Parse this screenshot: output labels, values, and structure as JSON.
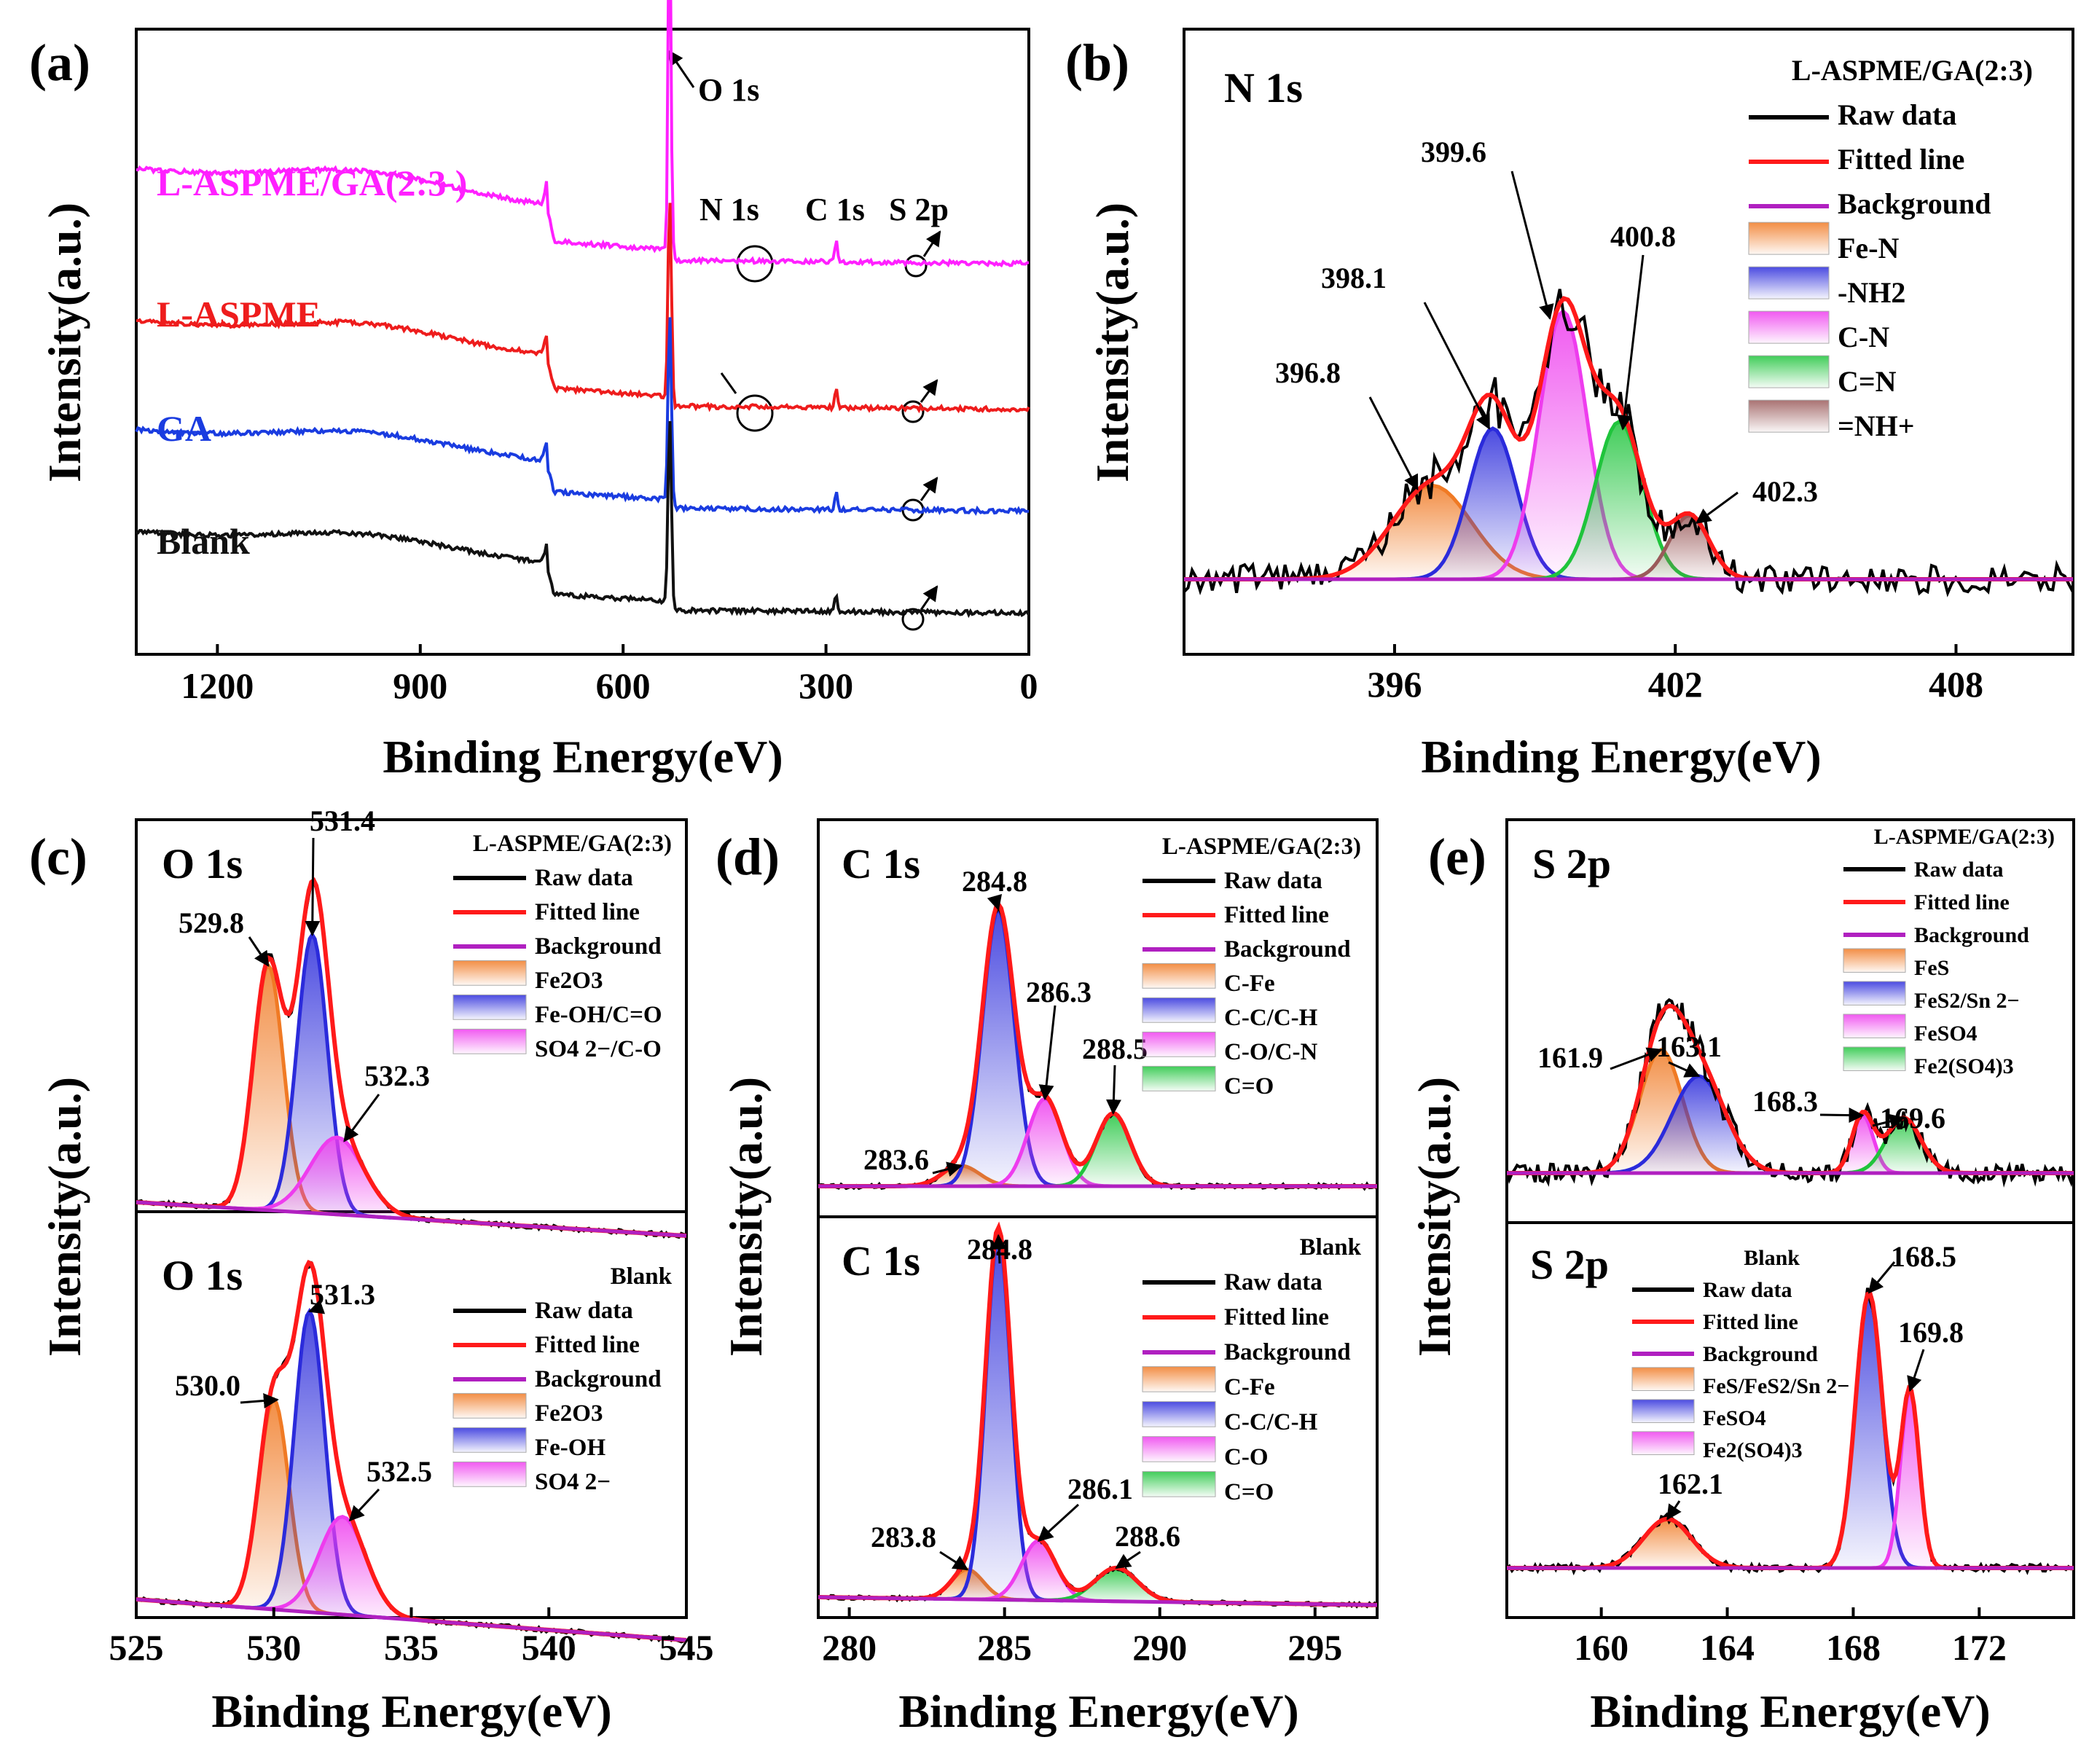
{
  "figure": {
    "panel_letters": [
      "(a)",
      "(b)",
      "(c)",
      "(d)",
      "(e)"
    ]
  },
  "colors": {
    "raw": "#000000",
    "fitted": "#ff1a1a",
    "background": "#b020c0",
    "orange": "#f07a24",
    "blue": "#2b2bdb",
    "magenta": "#ee3cee",
    "green": "#1fc43c",
    "brown": "#9a5a5a",
    "survey_lg": "#ff20ff",
    "survey_la": "#ee1c1c",
    "survey_ga": "#1a3ce0",
    "survey_blank": "#111111"
  },
  "chart_data": [
    {
      "id": "a",
      "type": "line",
      "panel_label": "(a)",
      "xlabel": "Binding Energy(eV)",
      "ylabel": "Intensity(a.u.)",
      "xlim": [
        1320,
        0
      ],
      "xticks": [
        1200,
        900,
        600,
        300,
        0
      ],
      "series": [
        {
          "name": "L-ASPME/GA(2:3 )",
          "offset": 2.9
        },
        {
          "name": "L-ASPME",
          "offset": 1.9
        },
        {
          "name": "GA",
          "offset": 1.0
        },
        {
          "name": "Blank",
          "offset": 0.0
        }
      ],
      "peak_labels": [
        "O 1s",
        "N 1s",
        "C 1s",
        "S 2p"
      ],
      "peak_positions_eV": {
        "O 1s": 531,
        "N 1s": 399,
        "C 1s": 285,
        "S 2p": 165,
        "Fe 2p": 711
      }
    },
    {
      "id": "b",
      "type": "line",
      "panel_label": "(b)",
      "title": "N 1s",
      "sample": "L-ASPME/GA(2:3)",
      "xlabel": "Binding Energy(eV)",
      "ylabel": "Intensity(a.u.)",
      "xlim": [
        391.5,
        410.5
      ],
      "xticks": [
        396,
        402,
        408
      ],
      "legend": [
        "Raw data",
        "Fitted line",
        "Background",
        "Fe-N",
        "-NH2",
        "C-N",
        "C=N",
        "=NH+"
      ],
      "components": [
        {
          "name": "Fe-N",
          "center": 396.8,
          "height": 0.28,
          "fwhm": 2.0
        },
        {
          "name": "-NH2",
          "center": 398.1,
          "height": 0.45,
          "fwhm": 1.2
        },
        {
          "name": "C-N",
          "center": 399.6,
          "height": 0.8,
          "fwhm": 1.2
        },
        {
          "name": "C=N",
          "center": 400.8,
          "height": 0.47,
          "fwhm": 1.2
        },
        {
          "name": "=NH+",
          "center": 402.3,
          "height": 0.19,
          "fwhm": 1.0
        }
      ],
      "peak_labels": [
        "396.8",
        "398.1",
        "399.6",
        "400.8",
        "402.3"
      ]
    },
    {
      "id": "c_top",
      "type": "line",
      "panel_label": "(c)",
      "title": "O 1s",
      "sample": "L-ASPME/GA(2:3)",
      "xlim": [
        525,
        545
      ],
      "legend": [
        "Raw data",
        "Fitted line",
        "Background",
        "Fe2O3",
        "Fe-OH/C=O",
        "SO4 2−/C-O"
      ],
      "components": [
        {
          "name": "Fe2O3",
          "center": 529.8,
          "height": 0.73,
          "fwhm": 1.3
        },
        {
          "name": "Fe-OH/C=O",
          "center": 531.4,
          "height": 0.83,
          "fwhm": 1.3
        },
        {
          "name": "SO4 2−/C-O",
          "center": 532.3,
          "height": 0.23,
          "fwhm": 2.3
        }
      ],
      "peak_labels": [
        "529.8",
        "531.4",
        "532.3"
      ]
    },
    {
      "id": "c_bottom",
      "type": "line",
      "title": "O 1s",
      "sample": "Blank",
      "xlabel": "Binding Energy(eV)",
      "ylabel": "Intensity(a.u.)",
      "xlim": [
        525,
        545
      ],
      "xticks": [
        525,
        530,
        535,
        540,
        545
      ],
      "legend": [
        "Raw data",
        "Fitted line",
        "Background",
        "Fe2O3",
        "Fe-OH",
        "SO4 2−"
      ],
      "components": [
        {
          "name": "Fe2O3",
          "center": 530.0,
          "height": 0.6,
          "fwhm": 1.3
        },
        {
          "name": "Fe-OH",
          "center": 531.3,
          "height": 0.86,
          "fwhm": 1.3
        },
        {
          "name": "SO4 2−",
          "center": 532.5,
          "height": 0.28,
          "fwhm": 2.0
        }
      ],
      "peak_labels": [
        "530.0",
        "531.3",
        "532.5"
      ]
    },
    {
      "id": "d_top",
      "type": "line",
      "panel_label": "(d)",
      "title": "C 1s",
      "sample": "L-ASPME/GA(2:3)",
      "xlim": [
        279,
        297
      ],
      "legend": [
        "Raw data",
        "Fitted line",
        "Background",
        "C-Fe",
        "C-C/C-H",
        "C-O/C-N",
        "C=O"
      ],
      "components": [
        {
          "name": "C-Fe",
          "center": 283.6,
          "height": 0.07,
          "fwhm": 1.4
        },
        {
          "name": "C-C/C-H",
          "center": 284.8,
          "height": 0.95,
          "fwhm": 1.2
        },
        {
          "name": "C-O/C-N",
          "center": 286.3,
          "height": 0.3,
          "fwhm": 1.3
        },
        {
          "name": "C=O",
          "center": 288.5,
          "height": 0.25,
          "fwhm": 1.3
        }
      ],
      "peak_labels": [
        "283.6",
        "284.8",
        "286.3",
        "288.5"
      ]
    },
    {
      "id": "d_bottom",
      "type": "line",
      "title": "C 1s",
      "sample": "Blank",
      "xlabel": "Binding Energy(eV)",
      "ylabel": "Intensity(a.u.)",
      "xlim": [
        279,
        297
      ],
      "xticks": [
        280,
        285,
        290,
        295
      ],
      "legend": [
        "Raw data",
        "Fitted line",
        "Background",
        "C-Fe",
        "C-C/C-H",
        "C-O",
        "C=O"
      ],
      "components": [
        {
          "name": "C-Fe",
          "center": 283.8,
          "height": 0.08,
          "fwhm": 1.2
        },
        {
          "name": "C-C/C-H",
          "center": 284.8,
          "height": 0.98,
          "fwhm": 0.95
        },
        {
          "name": "C-O",
          "center": 286.1,
          "height": 0.16,
          "fwhm": 1.3
        },
        {
          "name": "C=O",
          "center": 288.6,
          "height": 0.09,
          "fwhm": 1.6
        }
      ],
      "peak_labels": [
        "283.8",
        "284.8",
        "286.1",
        "288.6"
      ]
    },
    {
      "id": "e_top",
      "type": "line",
      "panel_label": "(e)",
      "title": "S 2p",
      "sample": "L-ASPME/GA(2:3)",
      "xlim": [
        157,
        175
      ],
      "legend": [
        "Raw data",
        "Fitted line",
        "Background",
        "FeS",
        "FeS2/Sn 2−",
        "FeSO4",
        "Fe2(SO4)3"
      ],
      "components": [
        {
          "name": "FeS",
          "center": 161.9,
          "height": 0.47,
          "fwhm": 1.6
        },
        {
          "name": "FeS2/Sn 2−",
          "center": 163.1,
          "height": 0.37,
          "fwhm": 2.0
        },
        {
          "name": "FeSO4",
          "center": 168.3,
          "height": 0.22,
          "fwhm": 0.8
        },
        {
          "name": "Fe2(SO4)3",
          "center": 169.6,
          "height": 0.21,
          "fwhm": 1.3
        }
      ],
      "peak_labels": [
        "161.9",
        "163.1",
        "168.3",
        "169.6"
      ]
    },
    {
      "id": "e_bottom",
      "type": "line",
      "title": "S 2p",
      "sample": "Blank",
      "xlabel": "Binding Energy(eV)",
      "ylabel": "Intensity(a.u.)",
      "xlim": [
        157,
        175
      ],
      "xticks": [
        160,
        164,
        168,
        172
      ],
      "legend": [
        "Raw data",
        "Fitted line",
        "Background",
        "FeS/FeS2/Sn 2−",
        "FeSO4",
        "Fe2(SO4)3"
      ],
      "components": [
        {
          "name": "FeS/FeS2/Sn 2−",
          "center": 162.1,
          "height": 0.16,
          "fwhm": 1.8
        },
        {
          "name": "FeSO4",
          "center": 168.5,
          "height": 0.9,
          "fwhm": 1.0
        },
        {
          "name": "Fe2(SO4)3",
          "center": 169.8,
          "height": 0.58,
          "fwhm": 0.7
        }
      ],
      "peak_labels": [
        "162.1",
        "168.5",
        "169.8"
      ]
    }
  ]
}
